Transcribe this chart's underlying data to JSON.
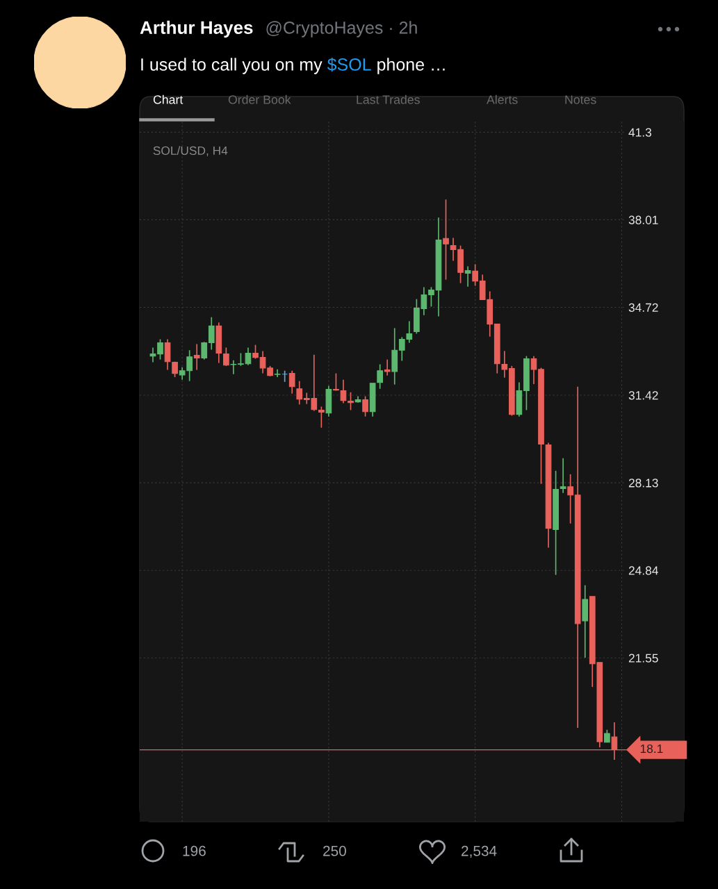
{
  "chart_data": {
    "type": "candlestick",
    "title": "SOL/USD, H4",
    "annotations": [
      "Arthur Hayes",
      "@CryptoHayes · 2h",
      "I used to call you on my ",
      "$SOL",
      " phone …",
      "Chart",
      "Order Book",
      "Last Trades",
      "Alerts",
      "Notes",
      "196",
      "250",
      "2,534"
    ],
    "categories": [
      null,
      null,
      null,
      null,
      null,
      null,
      null,
      null,
      null,
      null,
      null,
      null,
      null,
      null,
      null,
      null,
      null,
      null,
      null,
      null,
      null,
      null,
      null,
      null,
      null,
      null,
      null,
      null,
      null,
      null,
      null,
      null,
      null,
      null,
      null,
      null,
      null,
      null,
      null,
      null,
      null,
      null,
      null,
      null,
      null,
      null,
      null,
      null,
      null,
      null,
      null,
      null,
      null,
      null,
      null,
      null,
      null,
      null,
      null,
      null,
      null,
      null,
      null,
      null
    ],
    "ohlc": [
      [
        32.89,
        33.21,
        32.66,
        32.97
      ],
      [
        32.97,
        33.52,
        32.76,
        33.39
      ],
      [
        33.39,
        33.52,
        32.37,
        32.68
      ],
      [
        32.66,
        32.68,
        32.1,
        32.24
      ],
      [
        32.18,
        32.47,
        32.0,
        32.34
      ],
      [
        32.34,
        33.11,
        31.95,
        32.86
      ],
      [
        32.92,
        33.34,
        32.37,
        32.82
      ],
      [
        32.82,
        33.42,
        32.76,
        33.39
      ],
      [
        33.39,
        34.35,
        33.13,
        34.02
      ],
      [
        34.02,
        34.15,
        32.63,
        33.0
      ],
      [
        32.97,
        33.21,
        32.52,
        32.55
      ],
      [
        32.57,
        32.73,
        32.21,
        32.58
      ],
      [
        32.58,
        33.0,
        32.52,
        32.6
      ],
      [
        32.6,
        33.21,
        32.55,
        33.0
      ],
      [
        33.0,
        33.31,
        32.79,
        32.84
      ],
      [
        32.84,
        33.08,
        32.24,
        32.44
      ],
      [
        32.44,
        32.52,
        32.13,
        32.16
      ],
      [
        32.2,
        32.39,
        32.1,
        32.21
      ],
      [
        32.21,
        32.34,
        31.92,
        32.21
      ],
      [
        32.24,
        32.34,
        31.48,
        31.74
      ],
      [
        31.66,
        31.95,
        31.07,
        31.27
      ],
      [
        31.3,
        31.51,
        31.09,
        31.25
      ],
      [
        31.3,
        32.94,
        30.83,
        30.88
      ],
      [
        30.86,
        30.99,
        30.2,
        30.78
      ],
      [
        30.75,
        31.77,
        30.62,
        31.64
      ],
      [
        31.64,
        32.24,
        31.59,
        31.61
      ],
      [
        31.59,
        32.0,
        31.12,
        31.22
      ],
      [
        31.2,
        31.53,
        30.86,
        31.14
      ],
      [
        31.17,
        31.38,
        31.14,
        31.25
      ],
      [
        31.25,
        31.38,
        30.62,
        30.8
      ],
      [
        30.8,
        31.87,
        30.62,
        31.87
      ],
      [
        31.9,
        32.58,
        31.66,
        32.34
      ],
      [
        32.37,
        32.76,
        32.16,
        32.31
      ],
      [
        32.31,
        33.94,
        31.82,
        33.11
      ],
      [
        33.11,
        33.6,
        32.71,
        33.52
      ],
      [
        33.52,
        34.2,
        33.39,
        33.73
      ],
      [
        33.81,
        35.03,
        33.73,
        34.69
      ],
      [
        34.67,
        35.48,
        34.43,
        35.19
      ],
      [
        35.19,
        35.48,
        34.75,
        35.37
      ],
      [
        35.37,
        38.09,
        34.38,
        37.25
      ],
      [
        37.31,
        38.77,
        35.76,
        37.1
      ],
      [
        37.04,
        37.33,
        36.47,
        36.89
      ],
      [
        36.89,
        37.04,
        35.63,
        36.03
      ],
      [
        36.0,
        36.26,
        35.5,
        36.1
      ],
      [
        36.08,
        36.34,
        35.53,
        35.71
      ],
      [
        35.71,
        35.95,
        35.01,
        35.01
      ],
      [
        35.01,
        35.32,
        33.62,
        34.09
      ],
      [
        34.09,
        34.09,
        32.24,
        32.6
      ],
      [
        32.58,
        33.08,
        32.08,
        32.39
      ],
      [
        32.42,
        32.52,
        30.65,
        30.7
      ],
      [
        30.7,
        31.9,
        30.62,
        31.59
      ],
      [
        31.59,
        32.89,
        30.86,
        32.79
      ],
      [
        32.79,
        32.89,
        31.84,
        32.39
      ],
      [
        32.39,
        32.45,
        28.09,
        29.58
      ],
      [
        29.55,
        29.63,
        25.69,
        26.42
      ],
      [
        26.37,
        28.58,
        24.67,
        27.88
      ],
      [
        27.91,
        29.05,
        27.75,
        27.98
      ],
      [
        27.98,
        28.45,
        26.6,
        27.67
      ],
      [
        27.67,
        31.74,
        18.92,
        22.84
      ],
      [
        22.94,
        24.28,
        21.56,
        23.75
      ],
      [
        23.86,
        23.86,
        20.46,
        21.33
      ],
      [
        21.38,
        21.38,
        18.19,
        18.4
      ],
      [
        18.38,
        18.85,
        18.38,
        18.71
      ],
      [
        18.58,
        19.13,
        17.72,
        18.1
      ]
    ],
    "colors": [
      "#5cb86e",
      "#5cb86e",
      "#e8615b",
      "#e8615b",
      "#5cb86e",
      "#5cb86e",
      "#e8615b",
      "#5cb86e",
      "#5cb86e",
      "#e8615b",
      "#e8615b",
      "#5cb86e",
      "#5cb86e",
      "#5cb86e",
      "#e8615b",
      "#e8615b",
      "#e8615b",
      "#5cb86e",
      "#6aa9d8",
      "#e8615b",
      "#e8615b",
      "#e8615b",
      "#e8615b",
      "#e8615b",
      "#5cb86e",
      "#e8615b",
      "#e8615b",
      "#e8615b",
      "#5cb86e",
      "#e8615b",
      "#5cb86e",
      "#5cb86e",
      "#e8615b",
      "#5cb86e",
      "#5cb86e",
      "#5cb86e",
      "#5cb86e",
      "#5cb86e",
      "#5cb86e",
      "#5cb86e",
      "#e8615b",
      "#e8615b",
      "#e8615b",
      "#5cb86e",
      "#e8615b",
      "#e8615b",
      "#e8615b",
      "#e8615b",
      "#e8615b",
      "#e8615b",
      "#5cb86e",
      "#5cb86e",
      "#e8615b",
      "#e8615b",
      "#e8615b",
      "#5cb86e",
      "#5cb86e",
      "#e8615b",
      "#e8615b",
      "#5cb86e",
      "#e8615b",
      "#e8615b",
      "#5cb86e",
      "#e8615b"
    ],
    "ylim": [
      15.4,
      41.7
    ],
    "yticks": [
      41.3,
      38.01,
      34.72,
      31.42,
      28.13,
      24.84,
      21.55
    ],
    "ref_lines": [
      {
        "axis": "y",
        "value": 18.1,
        "label": "18.1",
        "color": "#e8615b"
      }
    ],
    "grid": true,
    "tick_labels": "y"
  }
}
